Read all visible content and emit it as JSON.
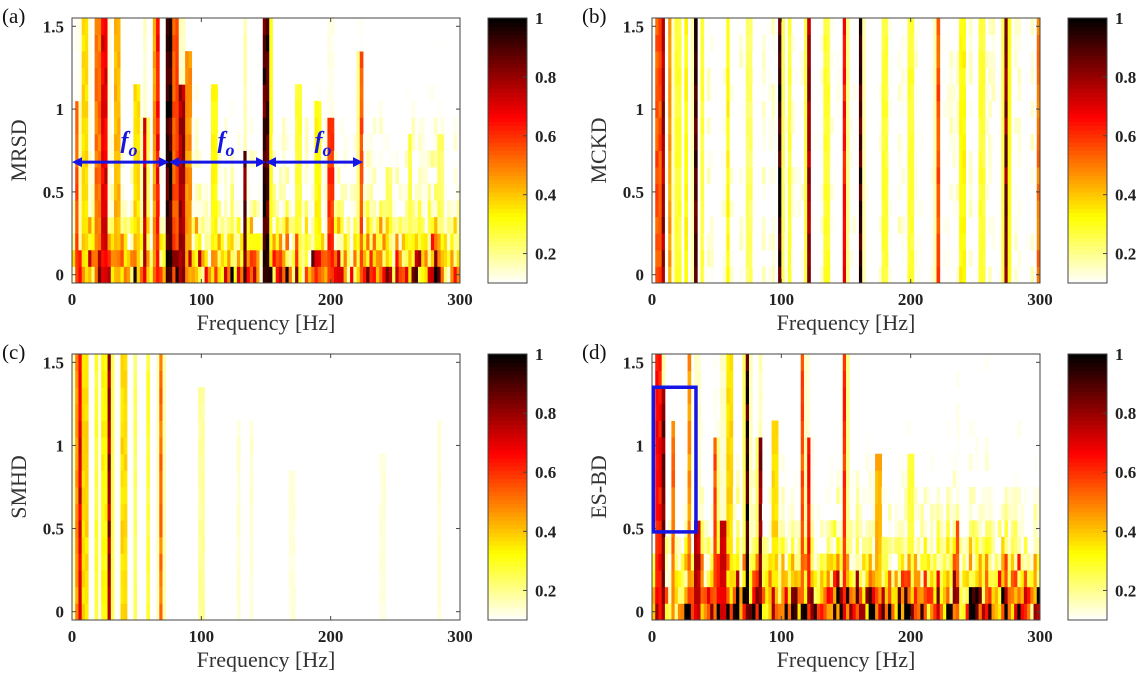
{
  "chart_data": [
    {
      "type": "heatmap",
      "panel_label": "(a)",
      "xlabel": "Frequency [Hz]",
      "ylabel": "MRSD",
      "xlim": [
        0,
        300
      ],
      "ylim": [
        -0.05,
        1.55
      ],
      "xticks": [
        "0",
        "100",
        "200",
        "300"
      ],
      "yticks": [
        "0",
        "0.5",
        "1",
        "1.5"
      ],
      "colorbar": {
        "range": [
          0.1,
          1
        ],
        "ticks": [
          "0.2",
          "0.4",
          "0.6",
          "0.8",
          "1"
        ],
        "colormap": "hot-reversed"
      },
      "base_levels": [
        0.5,
        0.42,
        0.3,
        0.22,
        0.15,
        0.12,
        0.1,
        0.1,
        0.08,
        0.08,
        0.06,
        0.06,
        0.05,
        0.05,
        0.05,
        0.05
      ],
      "peaks": [
        {
          "freq": 3,
          "intensity": 0.6,
          "extent": 1.0
        },
        {
          "freq": 10,
          "intensity": 0.4,
          "extent": 1.5
        },
        {
          "freq": 20,
          "intensity": 0.55,
          "extent": 1.5
        },
        {
          "freq": 25,
          "intensity": 0.75,
          "extent": 1.5
        },
        {
          "freq": 35,
          "intensity": 0.45,
          "extent": 1.5
        },
        {
          "freq": 50,
          "intensity": 0.4,
          "extent": 1.2
        },
        {
          "freq": 57,
          "intensity": 0.8,
          "extent": 0.9
        },
        {
          "freq": 63,
          "intensity": 0.5,
          "extent": 1.5
        },
        {
          "freq": 67,
          "intensity": 0.7,
          "extent": 1.5
        },
        {
          "freq": 75,
          "intensity": 1.0,
          "extent": 1.55
        },
        {
          "freq": 80,
          "intensity": 0.6,
          "extent": 1.5
        },
        {
          "freq": 85,
          "intensity": 0.85,
          "extent": 1.2
        },
        {
          "freq": 90,
          "intensity": 0.5,
          "extent": 1.3
        },
        {
          "freq": 110,
          "intensity": 0.35,
          "extent": 1.1
        },
        {
          "freq": 133,
          "intensity": 0.95,
          "extent": 0.75
        },
        {
          "freq": 150,
          "intensity": 0.98,
          "extent": 1.55
        },
        {
          "freq": 175,
          "intensity": 0.3,
          "extent": 1.1
        },
        {
          "freq": 190,
          "intensity": 0.35,
          "extent": 1.0
        },
        {
          "freq": 200,
          "intensity": 0.65,
          "extent": 0.9
        },
        {
          "freq": 223,
          "intensity": 0.6,
          "extent": 1.35
        },
        {
          "freq": 245,
          "intensity": 0.25,
          "extent": 0.7
        },
        {
          "freq": 262,
          "intensity": 0.3,
          "extent": 0.8
        },
        {
          "freq": 285,
          "intensity": 0.25,
          "extent": 0.8
        }
      ],
      "annotations": {
        "period_label": "f",
        "period_subscript": "o",
        "arrows": [
          {
            "from": 0,
            "to": 75,
            "y": 0.68
          },
          {
            "from": 75,
            "to": 150,
            "y": 0.68
          },
          {
            "from": 150,
            "to": 225,
            "y": 0.68
          }
        ],
        "color": "#1515e6"
      }
    },
    {
      "type": "heatmap",
      "panel_label": "(b)",
      "xlabel": "Frequency [Hz]",
      "ylabel": "MCKD",
      "xlim": [
        0,
        300
      ],
      "ylim": [
        -0.05,
        1.55
      ],
      "xticks": [
        "0",
        "100",
        "200",
        "300"
      ],
      "yticks": [
        "0",
        "0.5",
        "1",
        "1.5"
      ],
      "colorbar": {
        "range": [
          0.1,
          1
        ],
        "ticks": [
          "0.2",
          "0.4",
          "0.6",
          "0.8",
          "1"
        ],
        "colormap": "hot-reversed"
      },
      "base_levels": [
        0.08,
        0.08,
        0.08,
        0.08,
        0.08,
        0.08,
        0.08,
        0.08,
        0.08,
        0.08,
        0.08,
        0.08,
        0.08,
        0.08,
        0.08,
        0.08
      ],
      "peaks": [
        {
          "freq": 5,
          "intensity": 0.6,
          "extent": 1.55
        },
        {
          "freq": 9,
          "intensity": 0.85,
          "extent": 1.55
        },
        {
          "freq": 13,
          "intensity": 0.5,
          "extent": 1.55
        },
        {
          "freq": 20,
          "intensity": 0.3,
          "extent": 1.55
        },
        {
          "freq": 27,
          "intensity": 0.35,
          "extent": 1.55
        },
        {
          "freq": 33,
          "intensity": 1.0,
          "extent": 1.55
        },
        {
          "freq": 38,
          "intensity": 0.3,
          "extent": 1.55
        },
        {
          "freq": 58,
          "intensity": 0.35,
          "extent": 1.55
        },
        {
          "freq": 75,
          "intensity": 0.25,
          "extent": 1.55
        },
        {
          "freq": 99,
          "intensity": 1.0,
          "extent": 1.55
        },
        {
          "freq": 107,
          "intensity": 0.3,
          "extent": 1.55
        },
        {
          "freq": 122,
          "intensity": 0.85,
          "extent": 1.55
        },
        {
          "freq": 135,
          "intensity": 0.3,
          "extent": 1.55
        },
        {
          "freq": 148,
          "intensity": 0.7,
          "extent": 1.55
        },
        {
          "freq": 161,
          "intensity": 1.0,
          "extent": 1.55
        },
        {
          "freq": 180,
          "intensity": 0.3,
          "extent": 1.55
        },
        {
          "freq": 200,
          "intensity": 0.3,
          "extent": 1.55
        },
        {
          "freq": 222,
          "intensity": 0.6,
          "extent": 1.55
        },
        {
          "freq": 240,
          "intensity": 0.35,
          "extent": 1.55
        },
        {
          "freq": 255,
          "intensity": 0.3,
          "extent": 1.55
        },
        {
          "freq": 273,
          "intensity": 0.9,
          "extent": 1.55
        },
        {
          "freq": 298,
          "intensity": 0.55,
          "extent": 1.55
        }
      ]
    },
    {
      "type": "heatmap",
      "panel_label": "(c)",
      "xlabel": "Frequency [Hz]",
      "ylabel": "SMHD",
      "xlim": [
        0,
        300
      ],
      "ylim": [
        -0.05,
        1.55
      ],
      "xticks": [
        "0",
        "100",
        "200",
        "300"
      ],
      "yticks": [
        "0",
        "0.5",
        "1",
        "1.5"
      ],
      "colorbar": {
        "range": [
          0.1,
          1
        ],
        "ticks": [
          "0.2",
          "0.4",
          "0.6",
          "0.8",
          "1"
        ],
        "colormap": "hot-reversed"
      },
      "base_levels": [
        0.0,
        0.0,
        0.0,
        0.0,
        0.0,
        0.0,
        0.0,
        0.0,
        0.0,
        0.0,
        0.0,
        0.0,
        0.0,
        0.0,
        0.0,
        0.0
      ],
      "peaks": [
        {
          "freq": 3,
          "intensity": 0.5,
          "extent": 1.55
        },
        {
          "freq": 6,
          "intensity": 0.75,
          "extent": 1.55
        },
        {
          "freq": 10,
          "intensity": 0.4,
          "extent": 1.55
        },
        {
          "freq": 18,
          "intensity": 0.3,
          "extent": 1.55
        },
        {
          "freq": 25,
          "intensity": 0.35,
          "extent": 1.55
        },
        {
          "freq": 29,
          "intensity": 0.85,
          "extent": 1.55
        },
        {
          "freq": 40,
          "intensity": 0.4,
          "extent": 1.55
        },
        {
          "freq": 48,
          "intensity": 0.25,
          "extent": 1.55
        },
        {
          "freq": 58,
          "intensity": 0.3,
          "extent": 1.55
        },
        {
          "freq": 69,
          "intensity": 0.55,
          "extent": 1.55
        },
        {
          "freq": 100,
          "intensity": 0.2,
          "extent": 1.3
        },
        {
          "freq": 128,
          "intensity": 0.15,
          "extent": 1.2
        },
        {
          "freq": 138,
          "intensity": 0.15,
          "extent": 1.2
        },
        {
          "freq": 170,
          "intensity": 0.14,
          "extent": 0.8
        },
        {
          "freq": 240,
          "intensity": 0.14,
          "extent": 0.9
        },
        {
          "freq": 283,
          "intensity": 0.15,
          "extent": 1.1
        }
      ]
    },
    {
      "type": "heatmap",
      "panel_label": "(d)",
      "xlabel": "Frequency [Hz]",
      "ylabel": "ES-BD",
      "xlim": [
        0,
        300
      ],
      "ylim": [
        -0.05,
        1.55
      ],
      "xticks": [
        "0",
        "100",
        "200",
        "300"
      ],
      "yticks": [
        "0",
        "0.5",
        "1",
        "1.5"
      ],
      "colorbar": {
        "range": [
          0.1,
          1
        ],
        "ticks": [
          "0.2",
          "0.4",
          "0.6",
          "0.8",
          "1"
        ],
        "colormap": "hot-reversed"
      },
      "base_levels": [
        0.7,
        0.55,
        0.38,
        0.3,
        0.2,
        0.15,
        0.12,
        0.1,
        0.08,
        0.07,
        0.06,
        0.06,
        0.05,
        0.05,
        0.05,
        0.05
      ],
      "peaks": [
        {
          "freq": 5,
          "intensity": 0.7,
          "extent": 1.55
        },
        {
          "freq": 8,
          "intensity": 0.9,
          "extent": 1.3
        },
        {
          "freq": 17,
          "intensity": 0.55,
          "extent": 1.2
        },
        {
          "freq": 28,
          "intensity": 0.5,
          "extent": 1.55
        },
        {
          "freq": 35,
          "intensity": 0.8,
          "extent": 0.5
        },
        {
          "freq": 48,
          "intensity": 0.6,
          "extent": 1.0
        },
        {
          "freq": 55,
          "intensity": 0.8,
          "extent": 0.6
        },
        {
          "freq": 60,
          "intensity": 0.4,
          "extent": 1.55
        },
        {
          "freq": 73,
          "intensity": 1.0,
          "extent": 1.55
        },
        {
          "freq": 84,
          "intensity": 0.9,
          "extent": 1.0
        },
        {
          "freq": 95,
          "intensity": 0.4,
          "extent": 1.2
        },
        {
          "freq": 117,
          "intensity": 0.6,
          "extent": 1.55
        },
        {
          "freq": 121,
          "intensity": 0.7,
          "extent": 1.0
        },
        {
          "freq": 148,
          "intensity": 0.65,
          "extent": 1.55
        },
        {
          "freq": 175,
          "intensity": 0.45,
          "extent": 0.9
        },
        {
          "freq": 200,
          "intensity": 0.3,
          "extent": 0.9
        },
        {
          "freq": 237,
          "intensity": 0.6,
          "extent": 0.6
        },
        {
          "freq": 260,
          "intensity": 0.25,
          "extent": 0.6
        }
      ],
      "annotations": {
        "box": {
          "x": [
            1,
            34
          ],
          "y": [
            0.48,
            1.35
          ]
        },
        "color": "#1515e6"
      }
    }
  ]
}
